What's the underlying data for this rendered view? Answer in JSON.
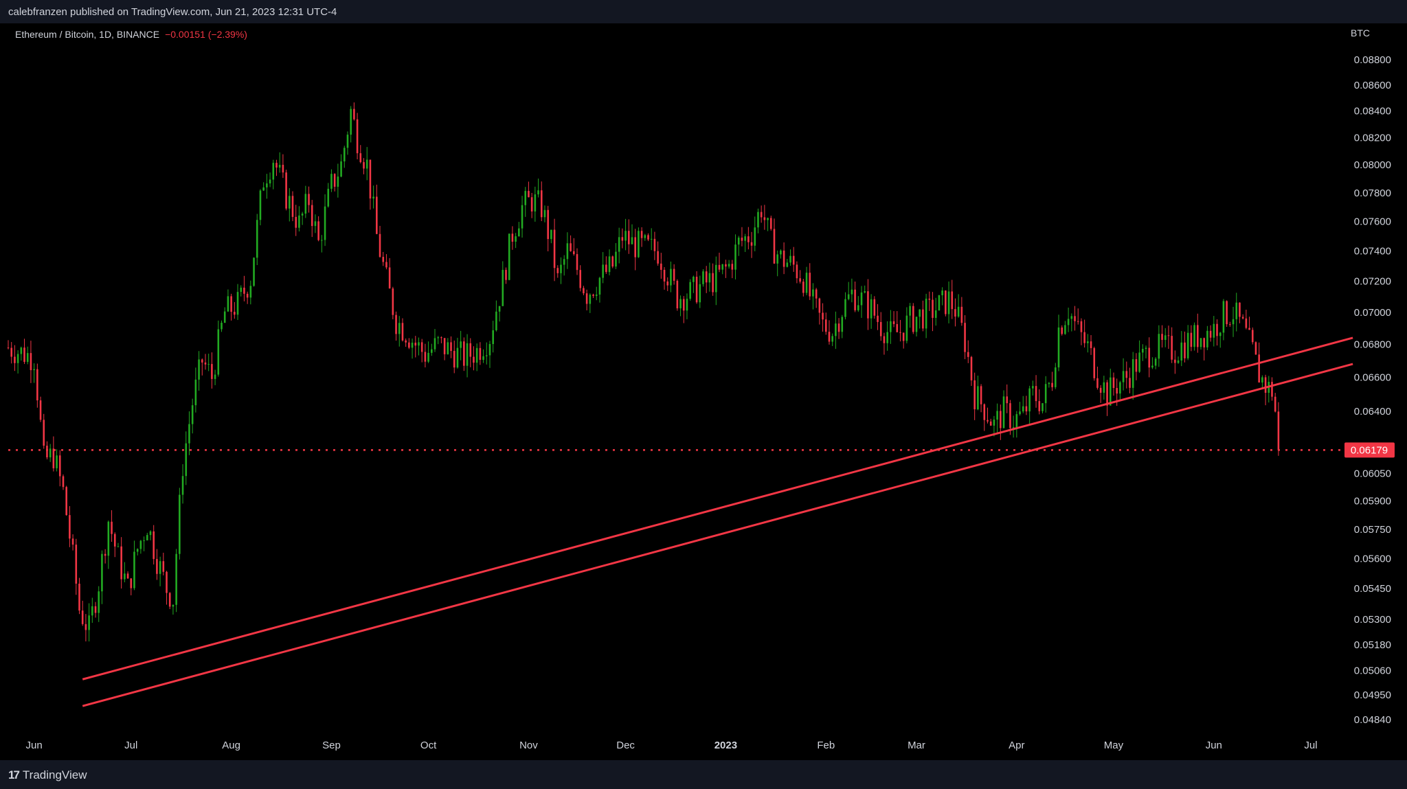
{
  "header": {
    "published_text": "calebfranzen published on TradingView.com, Jun 21, 2023 12:31 UTC-4"
  },
  "legend": {
    "symbol_text": "Ethereum / Bitcoin, 1D, BINANCE",
    "change_text": "−0.00151 (−2.39%)"
  },
  "footer": {
    "brand": "TradingView"
  },
  "colors": {
    "up": "#22ab22",
    "down": "#f23645",
    "line": "#f23645",
    "text": "#d1d4dc"
  },
  "chart_data": {
    "type": "candlestick",
    "title": "Ethereum / Bitcoin, 1D, BINANCE",
    "unit_label": "BTC",
    "y_scale": "log",
    "ylim": [
      0.0478,
      0.0896
    ],
    "y_ticks": [
      "0.08800",
      "0.08600",
      "0.08400",
      "0.08200",
      "0.08000",
      "0.07800",
      "0.07600",
      "0.07400",
      "0.07200",
      "0.07000",
      "0.06800",
      "0.06600",
      "0.06400",
      "0.06179",
      "0.06050",
      "0.05900",
      "0.05750",
      "0.05600",
      "0.05450",
      "0.05300",
      "0.05180",
      "0.05060",
      "0.04950",
      "0.04840"
    ],
    "x_range": [
      "2022-05-24",
      "2023-07-11"
    ],
    "x_ticks": [
      {
        "label": "Jun",
        "date": "2022-06-01",
        "bold": false
      },
      {
        "label": "Jul",
        "date": "2022-07-01",
        "bold": false
      },
      {
        "label": "Aug",
        "date": "2022-08-01",
        "bold": false
      },
      {
        "label": "Sep",
        "date": "2022-09-01",
        "bold": false
      },
      {
        "label": "Oct",
        "date": "2022-10-01",
        "bold": false
      },
      {
        "label": "Nov",
        "date": "2022-11-01",
        "bold": false
      },
      {
        "label": "Dec",
        "date": "2022-12-01",
        "bold": false
      },
      {
        "label": "2023",
        "date": "2023-01-01",
        "bold": true
      },
      {
        "label": "Feb",
        "date": "2023-02-01",
        "bold": false
      },
      {
        "label": "Mar",
        "date": "2023-03-01",
        "bold": false
      },
      {
        "label": "Apr",
        "date": "2023-04-01",
        "bold": false
      },
      {
        "label": "May",
        "date": "2023-05-01",
        "bold": false
      },
      {
        "label": "Jun",
        "date": "2023-06-01",
        "bold": false
      },
      {
        "label": "Jul",
        "date": "2023-07-01",
        "bold": false
      }
    ],
    "last_price": 0.06179,
    "last_price_label": "0.06179",
    "price_path": [
      [
        "2022-05-24",
        0.0678
      ],
      [
        "2022-05-28",
        0.0675
      ],
      [
        "2022-06-01",
        0.0672
      ],
      [
        "2022-06-04",
        0.0612
      ],
      [
        "2022-06-07",
        0.0615
      ],
      [
        "2022-06-10",
        0.0595
      ],
      [
        "2022-06-13",
        0.056
      ],
      [
        "2022-06-15",
        0.0535
      ],
      [
        "2022-06-18",
        0.0525
      ],
      [
        "2022-06-21",
        0.0548
      ],
      [
        "2022-06-24",
        0.058
      ],
      [
        "2022-06-27",
        0.056
      ],
      [
        "2022-06-30",
        0.0545
      ],
      [
        "2022-07-03",
        0.0565
      ],
      [
        "2022-07-06",
        0.0578
      ],
      [
        "2022-07-09",
        0.056
      ],
      [
        "2022-07-12",
        0.0545
      ],
      [
        "2022-07-14",
        0.054
      ],
      [
        "2022-07-17",
        0.061
      ],
      [
        "2022-07-20",
        0.0645
      ],
      [
        "2022-07-23",
        0.067
      ],
      [
        "2022-07-26",
        0.066
      ],
      [
        "2022-07-30",
        0.07
      ],
      [
        "2022-08-03",
        0.0705
      ],
      [
        "2022-08-07",
        0.0722
      ],
      [
        "2022-08-11",
        0.079
      ],
      [
        "2022-08-14",
        0.0805
      ],
      [
        "2022-08-18",
        0.0778
      ],
      [
        "2022-08-22",
        0.0758
      ],
      [
        "2022-08-25",
        0.0775
      ],
      [
        "2022-08-28",
        0.0745
      ],
      [
        "2022-09-01",
        0.0785
      ],
      [
        "2022-09-04",
        0.08
      ],
      [
        "2022-09-07",
        0.084
      ],
      [
        "2022-09-09",
        0.082
      ],
      [
        "2022-09-12",
        0.08
      ],
      [
        "2022-09-15",
        0.075
      ],
      [
        "2022-09-18",
        0.072
      ],
      [
        "2022-09-21",
        0.0695
      ],
      [
        "2022-09-24",
        0.0688
      ],
      [
        "2022-09-27",
        0.068
      ],
      [
        "2022-09-30",
        0.0674
      ],
      [
        "2022-10-04",
        0.068
      ],
      [
        "2022-10-08",
        0.0676
      ],
      [
        "2022-10-12",
        0.0672
      ],
      [
        "2022-10-16",
        0.0676
      ],
      [
        "2022-10-20",
        0.0685
      ],
      [
        "2022-10-24",
        0.072
      ],
      [
        "2022-10-27",
        0.0752
      ],
      [
        "2022-10-30",
        0.077
      ],
      [
        "2022-11-02",
        0.0775
      ],
      [
        "2022-11-05",
        0.077
      ],
      [
        "2022-11-08",
        0.0745
      ],
      [
        "2022-11-10",
        0.072
      ],
      [
        "2022-11-13",
        0.074
      ],
      [
        "2022-11-16",
        0.0728
      ],
      [
        "2022-11-19",
        0.0712
      ],
      [
        "2022-11-23",
        0.0722
      ],
      [
        "2022-11-27",
        0.073
      ],
      [
        "2022-11-30",
        0.075
      ],
      [
        "2022-12-03",
        0.0745
      ],
      [
        "2022-12-07",
        0.0742
      ],
      [
        "2022-12-11",
        0.074
      ],
      [
        "2022-12-14",
        0.0725
      ],
      [
        "2022-12-17",
        0.071
      ],
      [
        "2022-12-21",
        0.0712
      ],
      [
        "2022-12-25",
        0.0718
      ],
      [
        "2022-12-29",
        0.0722
      ],
      [
        "2023-01-02",
        0.073
      ],
      [
        "2023-01-05",
        0.0745
      ],
      [
        "2023-01-09",
        0.0752
      ],
      [
        "2023-01-12",
        0.077
      ],
      [
        "2023-01-15",
        0.0745
      ],
      [
        "2023-01-18",
        0.0735
      ],
      [
        "2023-01-22",
        0.073
      ],
      [
        "2023-01-25",
        0.0722
      ],
      [
        "2023-01-28",
        0.0705
      ],
      [
        "2023-01-31",
        0.0692
      ],
      [
        "2023-02-03",
        0.0688
      ],
      [
        "2023-02-06",
        0.0702
      ],
      [
        "2023-02-09",
        0.0712
      ],
      [
        "2023-02-12",
        0.0708
      ],
      [
        "2023-02-15",
        0.0702
      ],
      [
        "2023-02-18",
        0.0692
      ],
      [
        "2023-02-21",
        0.0686
      ],
      [
        "2023-02-24",
        0.0688
      ],
      [
        "2023-02-27",
        0.0695
      ],
      [
        "2023-03-02",
        0.0698
      ],
      [
        "2023-03-05",
        0.07
      ],
      [
        "2023-03-08",
        0.0704
      ],
      [
        "2023-03-11",
        0.0708
      ],
      [
        "2023-03-13",
        0.0702
      ],
      [
        "2023-03-16",
        0.0682
      ],
      [
        "2023-03-19",
        0.065
      ],
      [
        "2023-03-22",
        0.0642
      ],
      [
        "2023-03-25",
        0.0632
      ],
      [
        "2023-03-28",
        0.064
      ],
      [
        "2023-03-31",
        0.0635
      ],
      [
        "2023-04-03",
        0.0638
      ],
      [
        "2023-04-06",
        0.065
      ],
      [
        "2023-04-09",
        0.0645
      ],
      [
        "2023-04-12",
        0.066
      ],
      [
        "2023-04-14",
        0.069
      ],
      [
        "2023-04-17",
        0.0702
      ],
      [
        "2023-04-20",
        0.0688
      ],
      [
        "2023-04-23",
        0.0678
      ],
      [
        "2023-04-26",
        0.0662
      ],
      [
        "2023-04-29",
        0.065
      ],
      [
        "2023-05-02",
        0.0656
      ],
      [
        "2023-05-05",
        0.066
      ],
      [
        "2023-05-08",
        0.0668
      ],
      [
        "2023-05-12",
        0.0675
      ],
      [
        "2023-05-16",
        0.0678
      ],
      [
        "2023-05-20",
        0.0676
      ],
      [
        "2023-05-24",
        0.0682
      ],
      [
        "2023-05-28",
        0.0686
      ],
      [
        "2023-06-01",
        0.069
      ],
      [
        "2023-06-04",
        0.0698
      ],
      [
        "2023-06-07",
        0.07
      ],
      [
        "2023-06-10",
        0.069
      ],
      [
        "2023-06-13",
        0.0675
      ],
      [
        "2023-06-15",
        0.0662
      ],
      [
        "2023-06-17",
        0.0655
      ],
      [
        "2023-06-19",
        0.0652
      ],
      [
        "2023-06-20",
        0.064
      ],
      [
        "2023-06-21",
        0.06179
      ]
    ],
    "trendlines": [
      {
        "start": [
          "2022-06-16",
          0.0502
        ],
        "end": [
          "2023-07-14",
          0.0684
        ]
      },
      {
        "start": [
          "2022-06-16",
          0.049
        ],
        "end": [
          "2023-07-14",
          0.0668
        ]
      }
    ]
  }
}
